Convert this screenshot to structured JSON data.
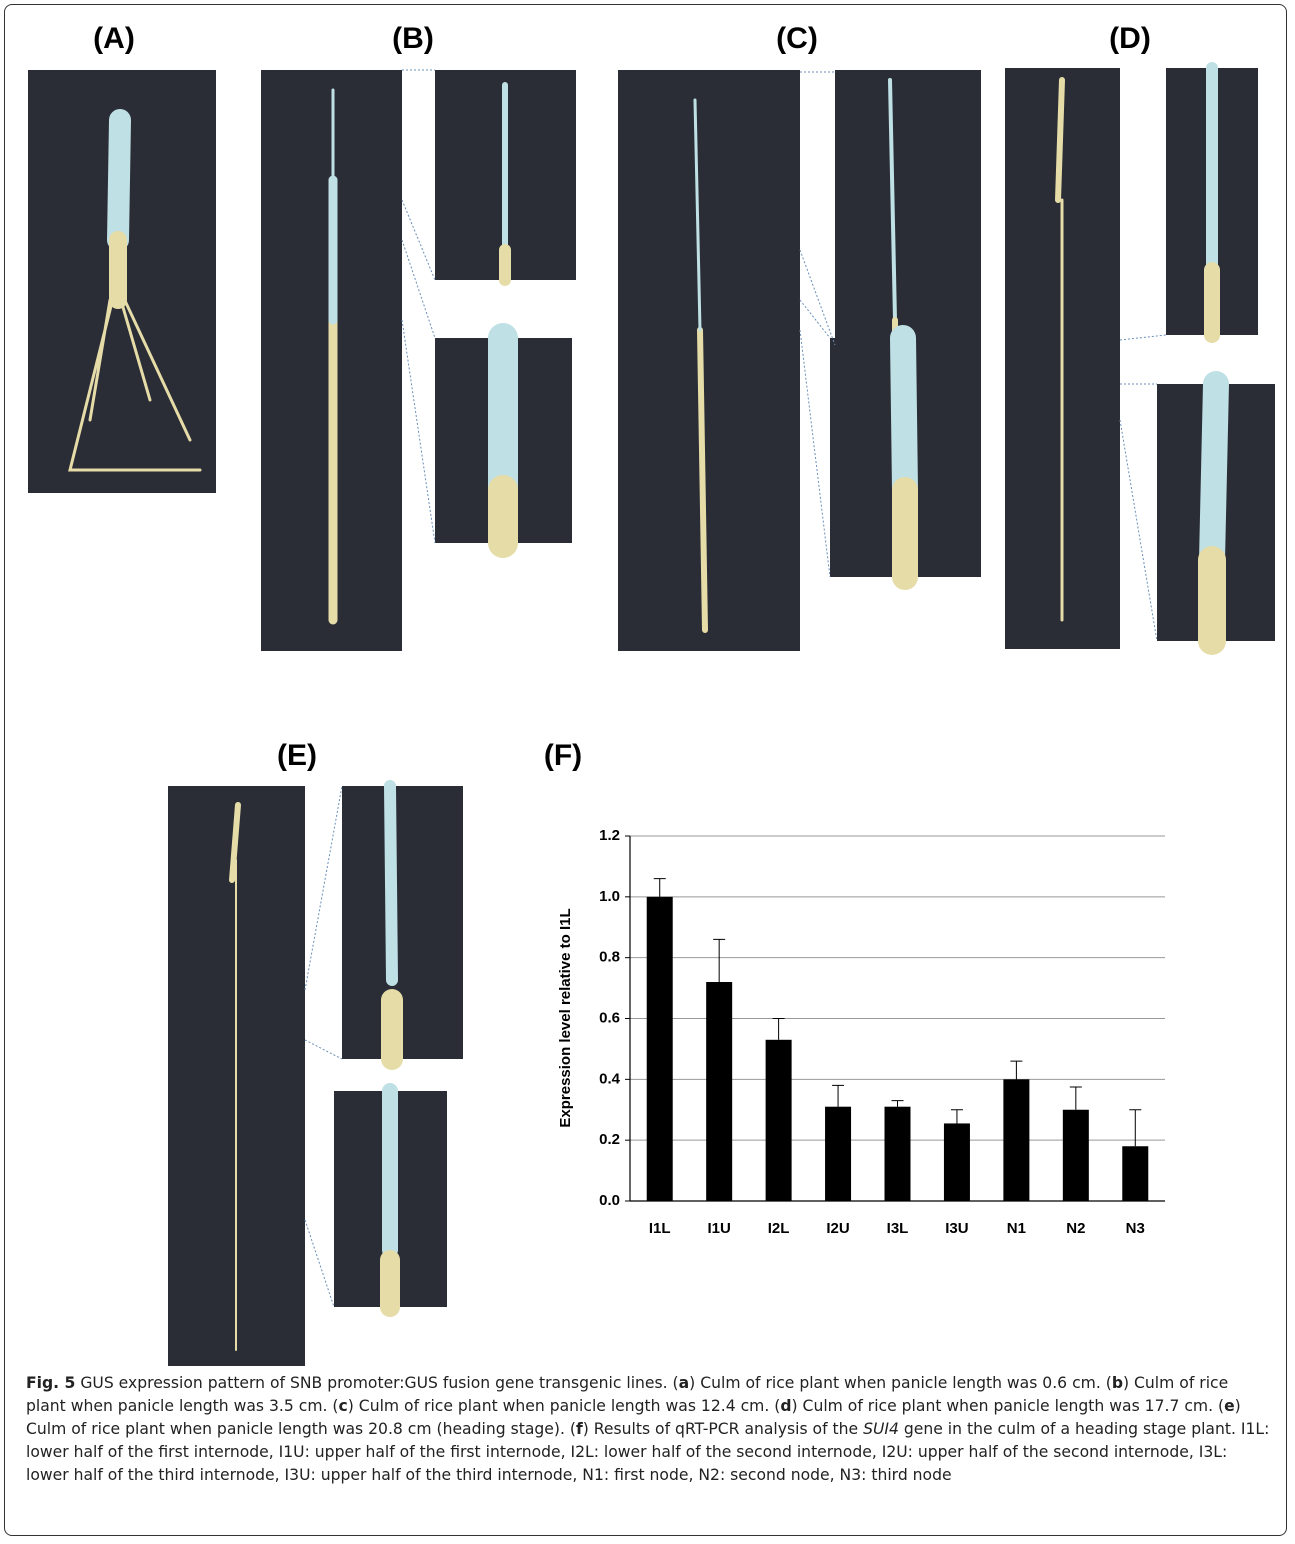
{
  "panels": {
    "a": "(A)",
    "b": "(B)",
    "c": "(C)",
    "d": "(D)",
    "e": "(E)",
    "f": "(F)"
  },
  "chart_data": {
    "type": "bar",
    "y_label": "Expression level relative to I1L",
    "categories": [
      "I1L",
      "I1U",
      "I2L",
      "I2U",
      "I3L",
      "I3U",
      "N1",
      "N2",
      "N3"
    ],
    "values": [
      1.0,
      0.72,
      0.53,
      0.31,
      0.31,
      0.255,
      0.4,
      0.3,
      0.18
    ],
    "errors": [
      0.06,
      0.14,
      0.07,
      0.07,
      0.02,
      0.045,
      0.06,
      0.075,
      0.12
    ],
    "color": "#000000",
    "ylim": [
      0,
      1.2
    ],
    "yticks": [
      {
        "value": 0,
        "label": "0.0"
      },
      0.2,
      0.4,
      0.6,
      0.8,
      {
        "value": 1,
        "label": "1.0"
      },
      1.2
    ],
    "grid": true
  },
  "caption": [
    "Fig. 5",
    " GUS expression pattern of SNB promoter:GUS fusion gene transgenic lines. (",
    "a",
    ") Culm of rice plant when panicle length was 0.6 cm. (",
    "b",
    ") Culm of rice plant when panicle length was 3.5 cm. (",
    "c",
    ") Culm of rice plant when panicle length was 12.4 cm. (",
    "d",
    ") Culm of rice plant when panicle length was 17.7 cm. (",
    "e",
    ") Culm of rice plant when panicle length was 20.8 cm (heading stage). (",
    "f",
    ") Results of qRT-PCR analysis of the ",
    "SUI4",
    " gene in the culm of a heading stage plant. I1L: lower half of the first internode, I1U: upper half of the first internode, I2L: lower half of the second internode, I2U: upper half of the second internode, I3L: lower half of the third internode, I3U: upper half of the third internode, N1: first node, N2: second node, N3: third node"
  ]
}
